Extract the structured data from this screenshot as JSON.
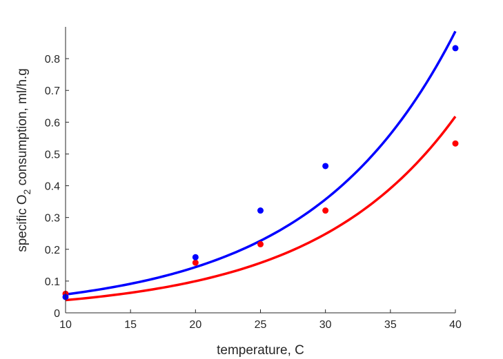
{
  "chart_data": {
    "type": "scatter",
    "xlabel": "temperature, C",
    "ylabel": {
      "prefix": "specific O",
      "subscript": "2",
      "suffix": " consumption, ml/h.g"
    },
    "xlim": [
      10,
      40
    ],
    "ylim": [
      0,
      0.9
    ],
    "xticks": [
      "10",
      "15",
      "20",
      "25",
      "30",
      "35",
      "40"
    ],
    "yticks": [
      "0",
      "0.1",
      "0.2",
      "0.3",
      "0.4",
      "0.5",
      "0.6",
      "0.7",
      "0.8"
    ],
    "grid": false,
    "series": [
      {
        "color": "#0000ff",
        "points": {
          "x": [
            10,
            20,
            25,
            30,
            40
          ],
          "y": [
            0.05,
            0.175,
            0.322,
            0.462,
            0.833
          ]
        },
        "fit": {
          "model": "exponential",
          "x_range": [
            10,
            40
          ],
          "y_start": 0.058,
          "y_end": 0.886
        }
      },
      {
        "color": "#ff0000",
        "points": {
          "x": [
            10,
            20,
            25,
            30,
            40
          ],
          "y": [
            0.06,
            0.158,
            0.216,
            0.322,
            0.533
          ]
        },
        "fit": {
          "model": "exponential",
          "x_range": [
            10,
            40
          ],
          "y_start": 0.04,
          "y_end": 0.618
        }
      }
    ]
  }
}
